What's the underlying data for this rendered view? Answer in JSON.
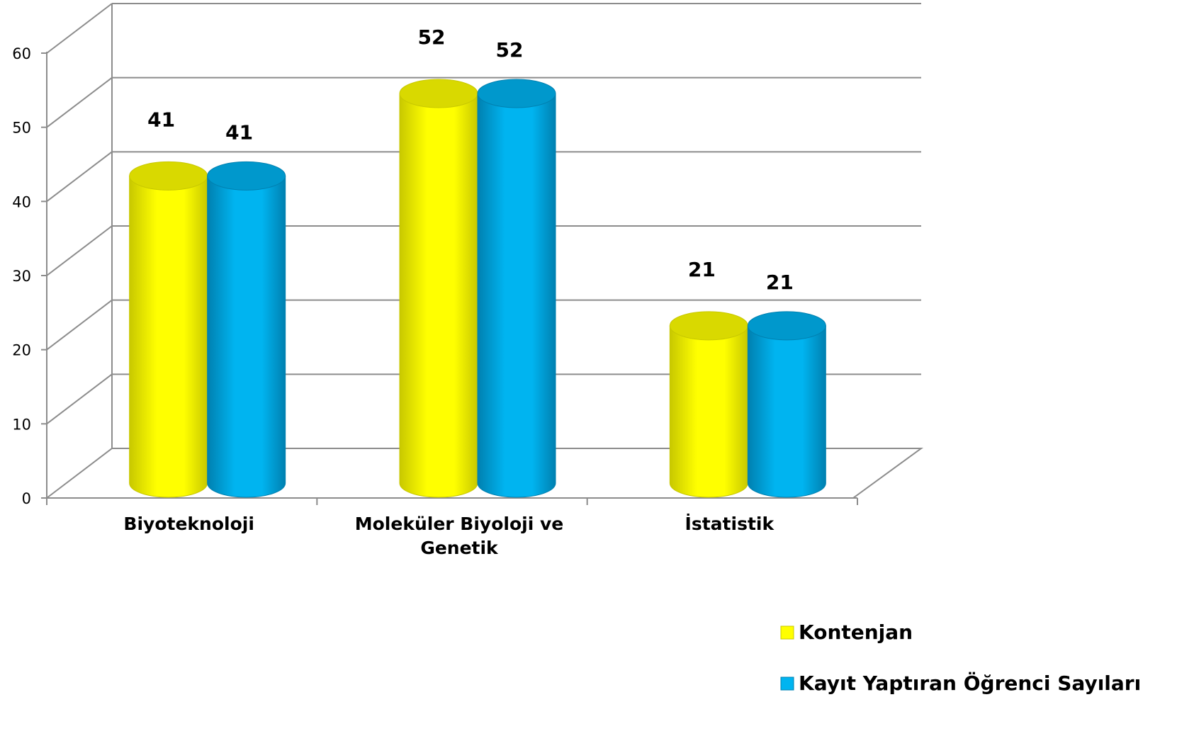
{
  "chart_data": {
    "type": "bar",
    "style": "3d-cylinder",
    "categories": [
      "Biyoteknoloji",
      "Moleküler Biyoloji ve Genetik",
      "İstatistik"
    ],
    "category_lines": [
      [
        "Biyoteknoloji"
      ],
      [
        "Moleküler Biyoloji ve",
        "Genetik"
      ],
      [
        "İstatistik"
      ]
    ],
    "series": [
      {
        "name": "Kontenjan",
        "values": [
          41,
          52,
          21
        ],
        "color": "#FFFF00",
        "shade": "#C8C800",
        "top": "#D9D900"
      },
      {
        "name": "Kayıt Yaptıran Öğrenci Sayıları",
        "values": [
          41,
          52,
          21
        ],
        "color": "#00B4F0",
        "shade": "#0080B0",
        "top": "#0098CC"
      }
    ],
    "ylim": [
      0,
      60
    ],
    "yticks": [
      0,
      10,
      20,
      30,
      40,
      50,
      60
    ],
    "ytick_labels": [
      "0",
      "10",
      "20",
      "30",
      "40",
      "50",
      "60"
    ],
    "title": "",
    "xlabel": "",
    "ylabel": "",
    "grid": true,
    "legend_position": "bottom-right"
  }
}
